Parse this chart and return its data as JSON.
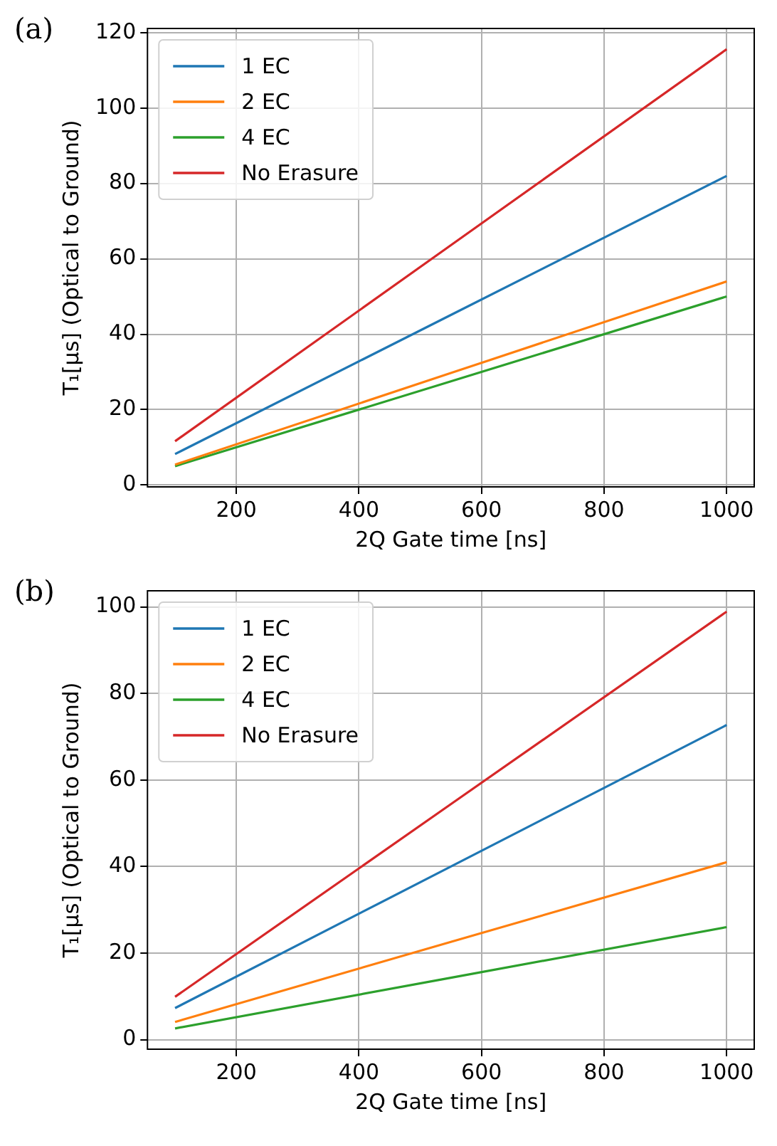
{
  "chart_data": [
    {
      "type": "line",
      "annotations": [
        "(a)"
      ],
      "xlabel": "2Q Gate time [ns]",
      "ylabel": "T₁[μs] (Optical to Ground)",
      "x": [
        100,
        550,
        1000
      ],
      "series": [
        {
          "name": "1 EC",
          "color": "#1f77b4",
          "values": [
            8.2,
            45.1,
            82
          ]
        },
        {
          "name": "2 EC",
          "color": "#ff7f0e",
          "values": [
            5.4,
            29.7,
            54
          ]
        },
        {
          "name": "4 EC",
          "color": "#2ca02c",
          "values": [
            5,
            27.5,
            50
          ]
        },
        {
          "name": "No Erasure",
          "color": "#d62728",
          "values": [
            11.6,
            63.6,
            115.6
          ]
        }
      ],
      "xlim": [
        55,
        1045
      ],
      "xticks": [
        200,
        400,
        600,
        800,
        1000
      ],
      "ylim": [
        -0.5,
        121.1
      ],
      "yticks": [
        0,
        20,
        40,
        60,
        80,
        100,
        120
      ],
      "grid": true,
      "legend": "top left",
      "marker": "none",
      "line_style": "solid"
    },
    {
      "type": "line",
      "annotations": [
        "(b)"
      ],
      "xlabel": "2Q Gate time [ns]",
      "ylabel": "T₁[μs] (Optical to Ground)",
      "x": [
        100,
        550,
        1000
      ],
      "series": [
        {
          "name": "1 EC",
          "color": "#1f77b4",
          "values": [
            7.3,
            40,
            72.7
          ]
        },
        {
          "name": "2 EC",
          "color": "#ff7f0e",
          "values": [
            4.1,
            22.6,
            41
          ]
        },
        {
          "name": "4 EC",
          "color": "#2ca02c",
          "values": [
            2.6,
            14.3,
            26
          ]
        },
        {
          "name": "No Erasure",
          "color": "#d62728",
          "values": [
            9.9,
            54.4,
            98.9
          ]
        }
      ],
      "xlim": [
        55,
        1045
      ],
      "xticks": [
        200,
        400,
        600,
        800,
        1000
      ],
      "ylim": [
        -2.2,
        103.7
      ],
      "yticks": [
        0,
        20,
        40,
        60,
        80,
        100
      ],
      "grid": true,
      "legend": "top left",
      "marker": "none",
      "line_style": "solid"
    }
  ]
}
